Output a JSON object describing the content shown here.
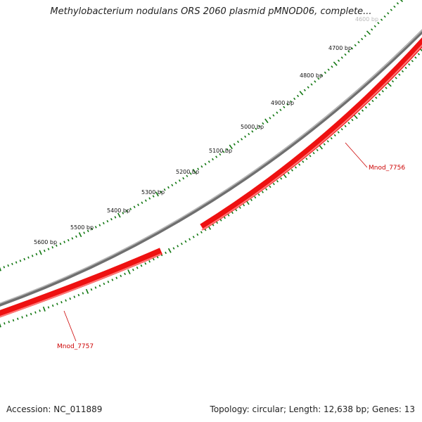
{
  "title": "Methylobacterium nodulans ORS 2060 plasmid pMNOD06, complete...",
  "footer": {
    "accession": "Accession: NC_011889",
    "summary": "Topology: circular; Length: 12,638 bp; Genes: 13"
  },
  "ruler": {
    "labels": [
      "4600 bp",
      "4700 bp",
      "4800 bp",
      "4900 bp",
      "5000 bp",
      "5100 bp",
      "5200 bp",
      "5300 bp",
      "5400 bp",
      "5500 bp",
      "5600 bp"
    ]
  },
  "genes": [
    {
      "name": "Mnod_7756"
    },
    {
      "name": "Mnod_7757"
    }
  ],
  "colors": {
    "backbone": "#8a8a8a",
    "gene": "#ee1111",
    "gene_highlight": "#ff7070",
    "ruler_ticks": "#117711",
    "gene_label": "#cc0000"
  }
}
